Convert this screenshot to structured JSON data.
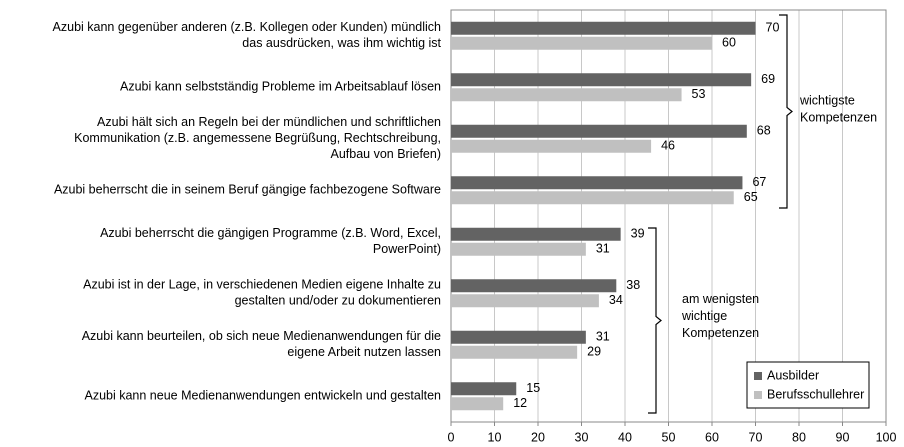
{
  "chart_data": {
    "type": "barh",
    "categories": [
      "Azubi kann gegenüber anderen (z.B. Kollegen oder Kunden) mündlich\ndas ausdrücken, was ihm wichtig ist",
      "Azubi kann selbstständig Probleme im Arbeitsablauf lösen",
      "Azubi hält sich an Regeln bei der mündlichen und schriftlichen\nKommunikation (z.B. angemessene Begrüßung, Rechtschreibung,\nAufbau von Briefen)",
      "Azubi beherrscht die in seinem Beruf gängige fachbezogene Software",
      "Azubi beherrscht die gängigen Programme (z.B. Word, Excel,\nPowerPoint)",
      "Azubi ist in der Lage, in verschiedenen Medien eigene Inhalte zu\ngestalten und/oder zu dokumentieren",
      "Azubi kann beurteilen, ob sich neue Medienanwendungen für die\neigene Arbeit nutzen lassen",
      "Azubi kann neue Medienanwendungen entwickeln und gestalten"
    ],
    "series": [
      {
        "name": "Ausbilder",
        "color": "#636363",
        "values": [
          70,
          69,
          68,
          67,
          39,
          38,
          31,
          15
        ]
      },
      {
        "name": "Berufsschullehrer",
        "color": "#c0c0c0",
        "values": [
          60,
          53,
          46,
          65,
          31,
          34,
          29,
          12
        ]
      }
    ],
    "xlim": [
      0,
      100
    ],
    "xticks": [
      0,
      10,
      20,
      30,
      40,
      50,
      60,
      70,
      80,
      90,
      100
    ],
    "grid": true,
    "legend": "lower right",
    "annotations": [
      "wichtigste\nKompetenzen",
      "am wenigsten\nwichtige\nKompetenzen"
    ]
  }
}
